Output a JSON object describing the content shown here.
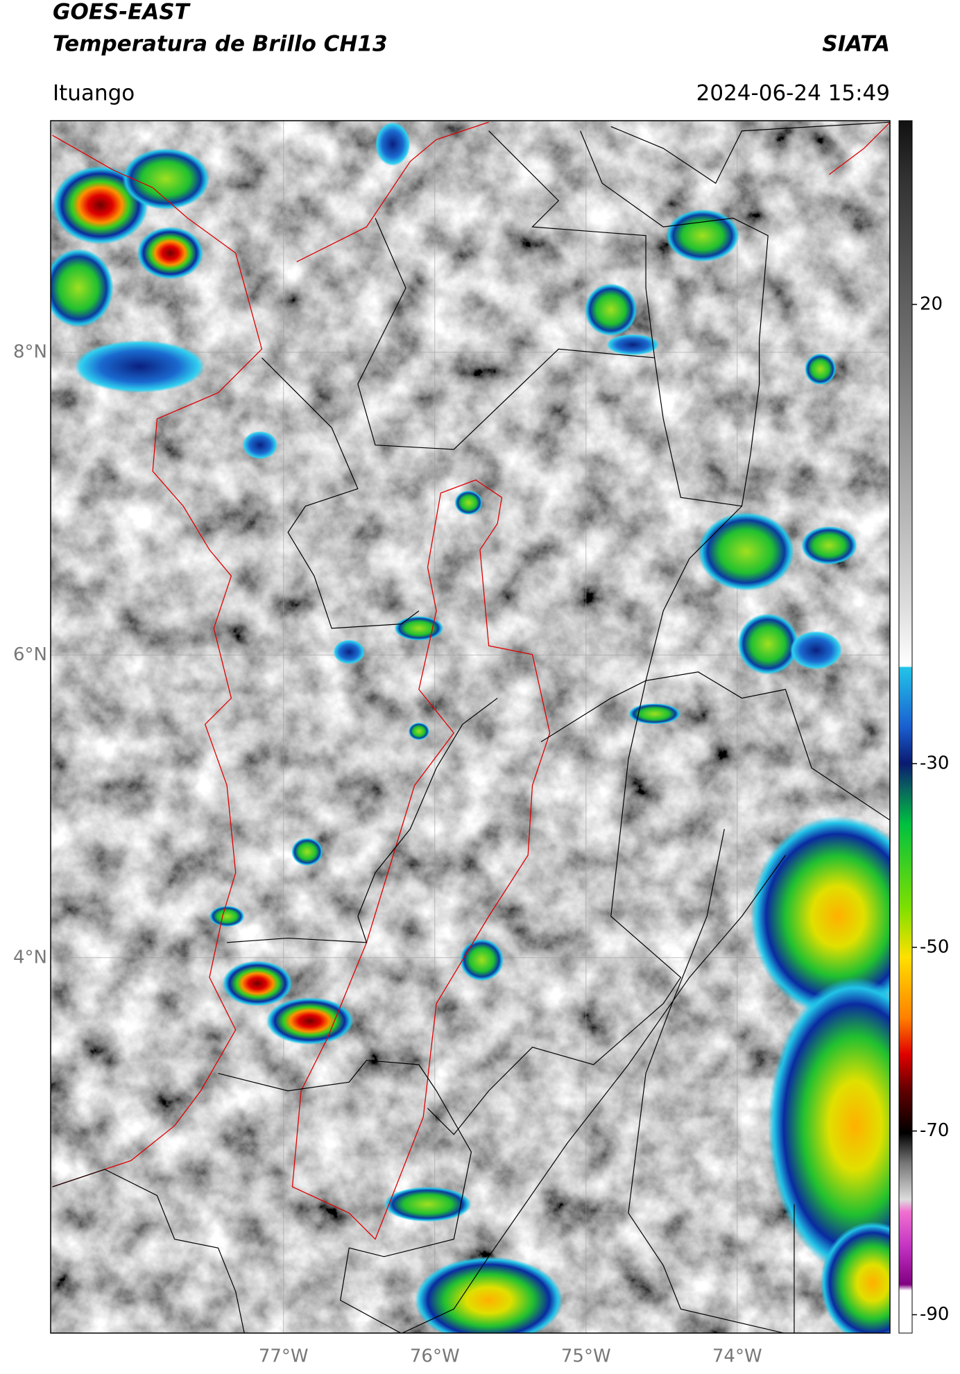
{
  "header": {
    "title": "GOES-EAST",
    "subtitle": "Temperatura de Brillo CH13",
    "brand": "SIATA",
    "location": "Ituango",
    "timestamp": "2024-06-24 15:49"
  },
  "map": {
    "xlim": [
      -78.54,
      -72.99
    ],
    "ylim": [
      1.52,
      9.53
    ],
    "xticks": [
      {
        "value": -77,
        "label": "77°W"
      },
      {
        "value": -76,
        "label": "76°W"
      },
      {
        "value": -75,
        "label": "75°W"
      },
      {
        "value": -74,
        "label": "74°W"
      }
    ],
    "yticks": [
      {
        "value": 8,
        "label": "8°N"
      },
      {
        "value": 6,
        "label": "6°N"
      },
      {
        "value": 4,
        "label": "4°N"
      }
    ],
    "grid": true
  },
  "colorbar": {
    "lim": [
      -92,
      40
    ],
    "ticks": [
      20,
      -30,
      -50,
      -70,
      -90
    ]
  }
}
